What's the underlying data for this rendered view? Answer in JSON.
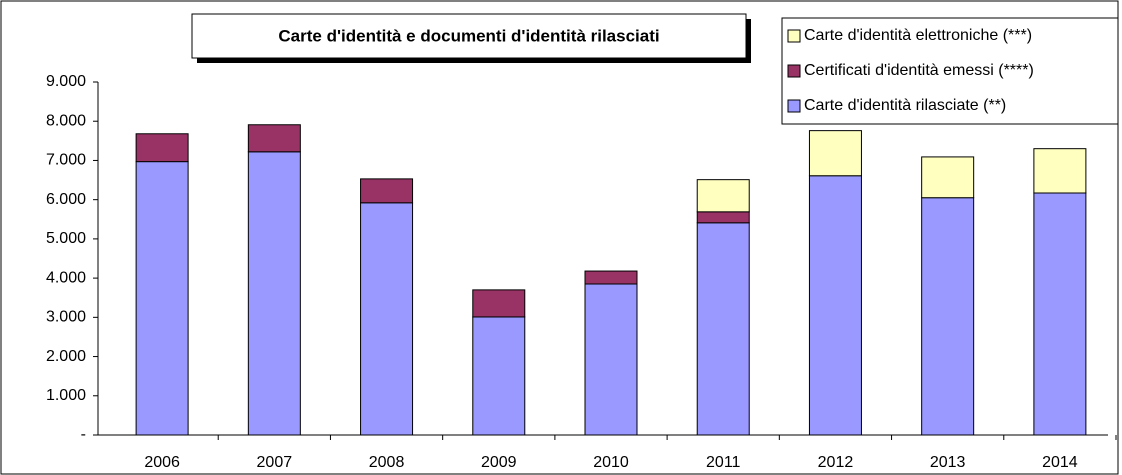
{
  "chart_data": {
    "type": "bar",
    "stacked": true,
    "title": "Carte d'identità e documenti d'identità rilasciati",
    "categories": [
      "2006",
      "2007",
      "2008",
      "2009",
      "2010",
      "2011",
      "2012",
      "2013",
      "2014"
    ],
    "series": [
      {
        "name": "Carte d'identità rilasciate (**)",
        "color": "#9999ff",
        "values": [
          6970,
          7220,
          5920,
          3010,
          3850,
          5410,
          6610,
          6050,
          6170
        ]
      },
      {
        "name": "Certificati d'identità emessi (****)",
        "color": "#993366",
        "values": [
          710,
          690,
          610,
          690,
          330,
          280,
          null,
          null,
          null
        ]
      },
      {
        "name": "Carte d'identità elettroniche (***)",
        "color": "#ffffc0",
        "values": [
          null,
          null,
          null,
          null,
          null,
          820,
          1150,
          1040,
          1130
        ]
      }
    ],
    "ylim": [
      0,
      9000
    ],
    "yticks": [
      {
        "value": 0,
        "label": "-"
      },
      {
        "value": 1000,
        "label": "1.000"
      },
      {
        "value": 2000,
        "label": "2.000"
      },
      {
        "value": 3000,
        "label": "3.000"
      },
      {
        "value": 4000,
        "label": "4.000"
      },
      {
        "value": 5000,
        "label": "5.000"
      },
      {
        "value": 6000,
        "label": "6.000"
      },
      {
        "value": 7000,
        "label": "7.000"
      },
      {
        "value": 8000,
        "label": "8.000"
      },
      {
        "value": 9000,
        "label": "9.000"
      }
    ],
    "legend": "top-right"
  }
}
